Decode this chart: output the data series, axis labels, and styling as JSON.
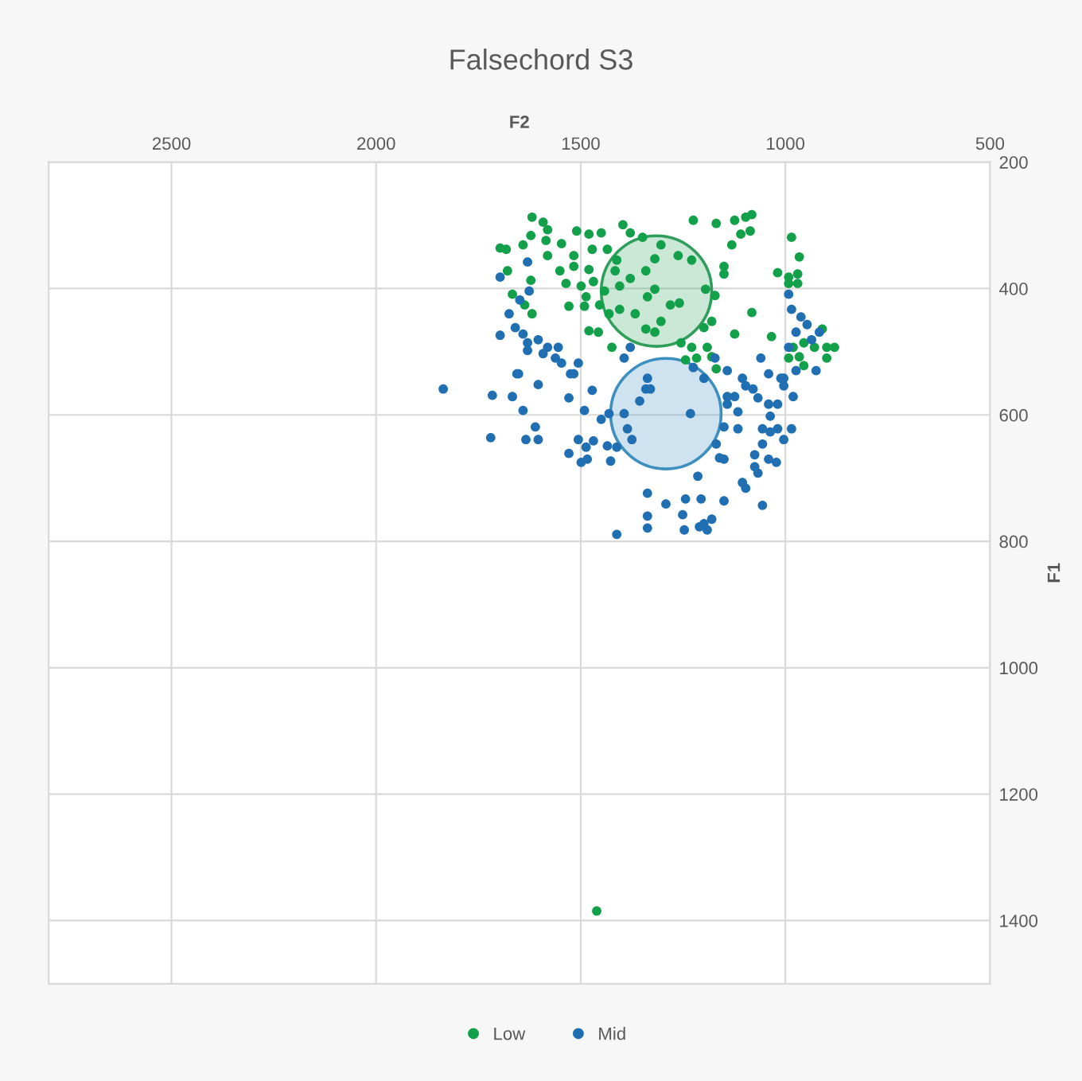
{
  "chart_data": {
    "type": "scatter",
    "title": "Falsechord S3",
    "xlabel": "F2",
    "ylabel": "F1",
    "xlim": [
      2800,
      500
    ],
    "ylim": [
      1500,
      200
    ],
    "xticks": [
      2500,
      2000,
      1500,
      1000,
      500
    ],
    "yticks": [
      200,
      400,
      600,
      800,
      1000,
      1200,
      1400
    ],
    "grid": true,
    "legend": "bottom",
    "marker": "circle",
    "series": [
      {
        "type": "bubble",
        "color": "#2e9e5b",
        "x": [
          1315
        ],
        "values": [
          404
        ],
        "sizes": [
          1
        ]
      },
      {
        "type": "bubble",
        "color": "#3d8fbf",
        "x": [
          1292
        ],
        "values": [
          598
        ],
        "sizes": [
          1
        ]
      },
      {
        "name": "Low",
        "color": "#13a04a",
        "x": [
          1619,
          1592,
          1581,
          1622,
          1641,
          1682,
          1585,
          1547,
          1510,
          1480,
          1450,
          1397,
          1379,
          1349,
          1472,
          1435,
          1517,
          1581,
          1517,
          1480,
          1551,
          1622,
          1469,
          1499,
          1442,
          1405,
          1379,
          1416,
          1536,
          1487,
          1529,
          1491,
          1454,
          1431,
          1405,
          1619,
          1480,
          1457,
          1341,
          1367,
          1341,
          1337,
          1319,
          1412,
          1225,
          1169,
          1124,
          1097,
          1082,
          1086,
          1109,
          1131,
          1150,
          1150,
          985,
          966,
          1019,
          992,
          970,
          992,
          970,
          1304,
          1262,
          1229,
          1319,
          1195,
          1172,
          1281,
          1259,
          1082,
          1180,
          1199,
          1304,
          1319,
          1124,
          1034,
          1255,
          1229,
          1191,
          1180,
          1217,
          1244,
          1169,
          981,
          955,
          929,
          899,
          880,
          910,
          899,
          966,
          992,
          955,
          1424,
          1697,
          1679,
          1667,
          1637,
          1461
        ],
        "values": [
          287,
          295,
          307,
          316,
          331,
          338,
          324,
          329,
          309,
          314,
          312,
          299,
          312,
          319,
          338,
          338,
          348,
          348,
          365,
          370,
          372,
          387,
          389,
          396,
          404,
          396,
          384,
          372,
          392,
          413,
          428,
          428,
          426,
          440,
          433,
          440,
          467,
          469,
          464,
          440,
          372,
          413,
          353,
          355,
          292,
          297,
          292,
          287,
          283,
          309,
          314,
          331,
          365,
          377,
          319,
          350,
          375,
          382,
          377,
          392,
          392,
          331,
          348,
          355,
          401,
          401,
          411,
          426,
          423,
          438,
          452,
          462,
          452,
          469,
          472,
          476,
          486,
          493,
          493,
          508,
          510,
          513,
          527,
          493,
          486,
          493,
          493,
          493,
          464,
          510,
          508,
          510,
          522,
          493,
          336,
          372,
          409,
          426,
          1385
        ]
      },
      {
        "name": "Mid",
        "color": "#1f6fb2",
        "x": [
          1697,
          1630,
          1626,
          1649,
          1675,
          1660,
          1641,
          1697,
          1630,
          1604,
          1630,
          1592,
          1581,
          1555,
          1562,
          1547,
          1506,
          1656,
          1525,
          1379,
          1394,
          1836,
          1716,
          1667,
          1652,
          1604,
          1641,
          1611,
          1634,
          1604,
          1529,
          1517,
          1491,
          1472,
          1506,
          1469,
          1529,
          1487,
          1499,
          1484,
          1450,
          1431,
          1435,
          1412,
          1427,
          1412,
          1337,
          1337,
          1337,
          1394,
          1386,
          1375,
          1341,
          1720,
          1232,
          1337,
          1330,
          1356,
          1142,
          1124,
          1142,
          1097,
          1079,
          1067,
          1041,
          1019,
          1004,
          1004,
          981,
          1116,
          1037,
          1150,
          1116,
          1056,
          1037,
          1019,
          1004,
          985,
          1056,
          1169,
          1161,
          1150,
          1075,
          1041,
          1022,
          1075,
          1067,
          1105,
          1097,
          1214,
          1244,
          1206,
          1150,
          1292,
          1056,
          1251,
          1180,
          1199,
          1210,
          1247,
          1191,
          992,
          985,
          962,
          947,
          974,
          936,
          917,
          992,
          974,
          1011,
          925,
          1172,
          1142,
          1105,
          1060,
          1041,
          1199,
          1225
        ],
        "values": [
          382,
          358,
          404,
          418,
          440,
          462,
          472,
          474,
          486,
          481,
          498,
          503,
          493,
          493,
          510,
          518,
          518,
          535,
          535,
          493,
          510,
          559,
          569,
          571,
          535,
          552,
          593,
          619,
          639,
          639,
          573,
          535,
          593,
          561,
          639,
          641,
          661,
          651,
          675,
          670,
          607,
          598,
          649,
          651,
          673,
          789,
          724,
          760,
          779,
          598,
          622,
          639,
          559,
          636,
          598,
          542,
          559,
          578,
          571,
          571,
          583,
          554,
          559,
          573,
          583,
          583,
          554,
          542,
          571,
          595,
          602,
          619,
          622,
          622,
          627,
          622,
          639,
          622,
          646,
          646,
          668,
          670,
          663,
          670,
          675,
          682,
          692,
          707,
          716,
          697,
          733,
          733,
          736,
          741,
          743,
          758,
          765,
          772,
          777,
          782,
          782,
          409,
          433,
          445,
          457,
          469,
          481,
          469,
          493,
          530,
          542,
          530,
          510,
          530,
          542,
          510,
          535,
          542,
          525
        ]
      }
    ]
  }
}
